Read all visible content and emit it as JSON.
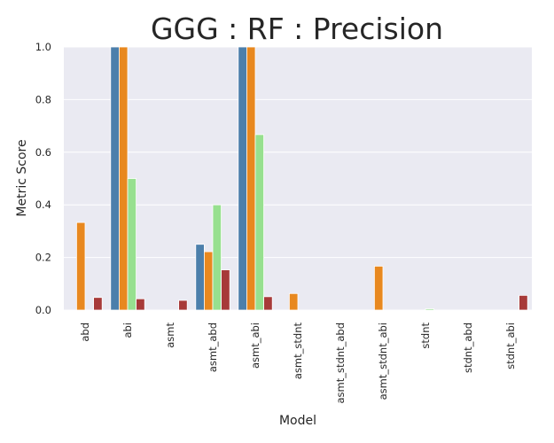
{
  "chart_data": {
    "type": "bar",
    "title": "GGG : RF : Precision",
    "xlabel": "Model",
    "ylabel": "Metric Score",
    "ylim": [
      0,
      1.0
    ],
    "yticks": [
      "0.0",
      "0.2",
      "0.4",
      "0.6",
      "0.8",
      "1.0"
    ],
    "grid": true,
    "legend": "none",
    "categories": [
      "abd",
      "abi",
      "asmt",
      "asmt_abd",
      "asmt_abi",
      "asmt_stdnt",
      "asmt_stdnt_abd",
      "asmt_stdnt_abi",
      "stdnt",
      "stdnt_abd",
      "stdnt_abi"
    ],
    "series": [
      {
        "color": "#4c7fab",
        "values": [
          0,
          1.0,
          0,
          0.25,
          1.0,
          0,
          0,
          0,
          0,
          0,
          0
        ]
      },
      {
        "color": "#e8881f",
        "values": [
          0.333,
          1.0,
          0,
          0.222,
          1.0,
          0.063,
          0,
          0.167,
          0,
          0,
          0
        ]
      },
      {
        "color": "#97e08f",
        "values": [
          0,
          0.5,
          0,
          0.4,
          0.667,
          0,
          0,
          0,
          0.005,
          0,
          0
        ]
      },
      {
        "color": "#a73a39",
        "values": [
          0.048,
          0.043,
          0.037,
          0.153,
          0.051,
          0,
          0,
          0,
          0,
          0,
          0.056
        ]
      }
    ]
  }
}
